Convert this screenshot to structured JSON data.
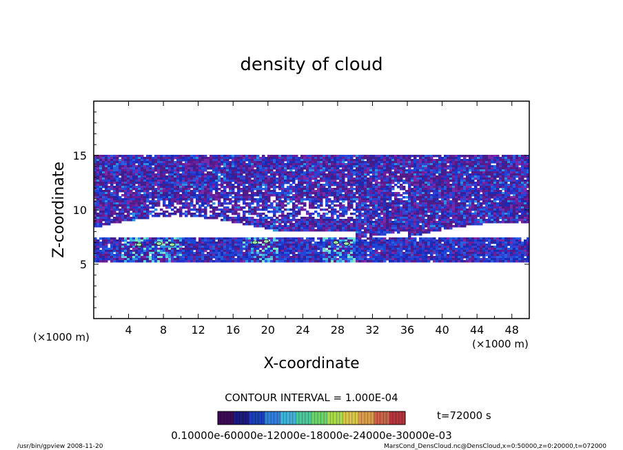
{
  "chart_data": {
    "type": "heatmap",
    "title": "density of cloud",
    "xlabel": "X-coordinate",
    "ylabel": "Z-coordinate",
    "x_unit": "(×1000 m)",
    "z_unit": "(×1000 m)",
    "xlim": [
      0,
      50
    ],
    "ylim": [
      0,
      20
    ],
    "x_ticks": [
      4,
      8,
      12,
      16,
      20,
      24,
      28,
      32,
      36,
      40,
      44,
      48
    ],
    "y_ticks": [
      5,
      10,
      15
    ],
    "contour_interval": "CONTOUR INTERVAL = 1.000E-04",
    "time_label": "t=72000 s",
    "colorbar_labels": "0.10000e-60000e-12000e-18000e-24000e-30000e-03",
    "colorbar_colors": [
      "#3d0a57",
      "#1c1a7d",
      "#1b3fb5",
      "#2f7fd9",
      "#3fb0d8",
      "#4cc69a",
      "#6bd36a",
      "#a8d94d",
      "#d7c64a",
      "#d99a4a",
      "#c9614a",
      "#b2343d"
    ],
    "layers": [
      {
        "name": "upper cloud",
        "z_range": [
          8.5,
          15.2
        ],
        "dominant": "purple-blue"
      },
      {
        "name": "lower cloud",
        "z_range": [
          5.2,
          7.5
        ],
        "dominant": "blue"
      }
    ],
    "grid": false
  },
  "footer": {
    "left": "/usr/bin/gpview   2008-11-20",
    "right": "MarsCond_DensCloud.nc@DensCloud,x=0:50000,z=0:20000,t=072000"
  }
}
